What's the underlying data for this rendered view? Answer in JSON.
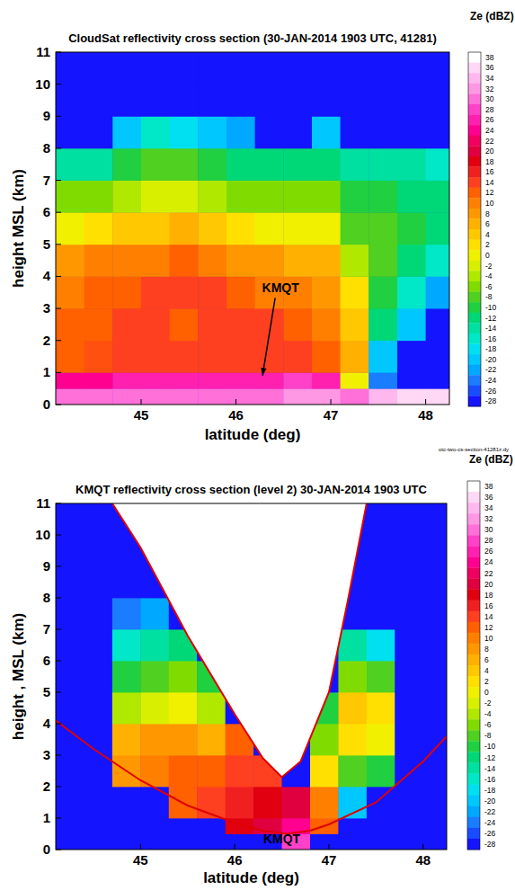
{
  "chart_data": [
    {
      "type": "heatmap",
      "title": "CloudSat reflectivity cross section (30-JAN-2014 1903 UTC, 41281)",
      "x_label": "latitude (deg)",
      "y_label": "height MSL (km)",
      "xlim": [
        44.1,
        48.25
      ],
      "ylim": [
        0,
        11
      ],
      "xticks": [
        45,
        46,
        47,
        48
      ],
      "yticks": [
        0,
        1,
        2,
        3,
        4,
        5,
        6,
        7,
        8,
        9,
        10,
        11
      ],
      "x_edges": [
        44.1,
        44.4,
        44.7,
        45.0,
        45.3,
        45.6,
        45.9,
        46.2,
        46.5,
        46.8,
        47.1,
        47.4,
        47.7,
        48.0,
        48.25
      ],
      "y_edges": [
        0,
        0.5,
        1,
        2,
        3,
        4,
        5,
        6,
        7,
        8,
        9,
        10,
        11
      ],
      "cells": [
        [
          30,
          24,
          12,
          12,
          10,
          8,
          0,
          -6,
          -14,
          -28,
          -28,
          -28
        ],
        [
          30,
          24,
          13,
          12,
          12,
          10,
          2,
          -6,
          -14,
          -28,
          -28,
          -28
        ],
        [
          30,
          26,
          14,
          14,
          12,
          10,
          4,
          -4,
          -10,
          -20,
          -28,
          -28
        ],
        [
          30,
          26,
          14,
          14,
          14,
          10,
          4,
          -2,
          -8,
          -16,
          -28,
          -28
        ],
        [
          30,
          26,
          14,
          12,
          14,
          12,
          6,
          -2,
          -8,
          -18,
          -28,
          -28
        ],
        [
          30,
          26,
          14,
          14,
          14,
          10,
          4,
          -4,
          -10,
          -20,
          -28,
          -28
        ],
        [
          30,
          26,
          14,
          14,
          12,
          8,
          2,
          -6,
          -12,
          -22,
          -28,
          -28
        ],
        [
          30,
          26,
          14,
          14,
          10,
          8,
          0,
          -6,
          -12,
          -28,
          -28,
          -28
        ],
        [
          32,
          28,
          14,
          12,
          10,
          6,
          0,
          -6,
          -12,
          -28,
          -28,
          -28
        ],
        [
          32,
          26,
          12,
          10,
          8,
          6,
          0,
          -6,
          -12,
          -20,
          -28,
          -28
        ],
        [
          30,
          0,
          6,
          4,
          2,
          -4,
          -8,
          -10,
          -14,
          -28,
          -28,
          -28
        ],
        [
          34,
          -24,
          -20,
          -12,
          -10,
          -8,
          -8,
          -10,
          -14,
          -28,
          -28,
          -28
        ],
        [
          36,
          -28,
          -28,
          -20,
          -16,
          -12,
          -10,
          -12,
          -14,
          -28,
          -28,
          -28
        ],
        [
          36,
          -28,
          -28,
          -28,
          -22,
          -16,
          -12,
          -12,
          -16,
          -28,
          -28,
          -28
        ]
      ],
      "colorbar": {
        "label": "Ze (dBZ)",
        "range": [
          -29,
          39
        ],
        "ticks": [
          38,
          36,
          34,
          32,
          30,
          28,
          26,
          24,
          22,
          20,
          18,
          16,
          14,
          12,
          10,
          8,
          6,
          4,
          2,
          0,
          -2,
          -4,
          -6,
          -8,
          -10,
          -12,
          -14,
          -16,
          -18,
          -20,
          -22,
          -24,
          -26,
          -28
        ]
      },
      "annotations": [
        {
          "text": "KMQT",
          "x": 46.28,
          "y": 0.9,
          "label_x": 46.47,
          "label_y": 3.5
        }
      ],
      "footnote": "otc-two-cs-section-41281z.dy"
    },
    {
      "type": "heatmap",
      "title": "KMQT reflectivity cross section (level 2) 30-JAN-2014 1903 UTC",
      "x_label": "latitude (deg)",
      "y_label": "height , MSL (km)",
      "xlim": [
        44.1,
        48.25
      ],
      "ylim": [
        0,
        11
      ],
      "xticks": [
        45,
        46,
        47,
        48
      ],
      "yticks": [
        0,
        1,
        2,
        3,
        4,
        5,
        6,
        7,
        8,
        9,
        10,
        11
      ],
      "x_edges": [
        44.1,
        44.4,
        44.7,
        45.0,
        45.3,
        45.6,
        45.9,
        46.2,
        46.5,
        46.8,
        47.1,
        47.4,
        47.7,
        48.0,
        48.25
      ],
      "y_edges": [
        0,
        0.5,
        1,
        2,
        3,
        4,
        5,
        6,
        7,
        8,
        9,
        10,
        11
      ],
      "cells": [
        [
          -28,
          -28,
          -28,
          -28,
          -28,
          -28,
          -28,
          -28,
          -28,
          -28,
          -28,
          -28
        ],
        [
          -28,
          -28,
          -28,
          -28,
          -28,
          -28,
          -28,
          -28,
          -28,
          -28,
          -28,
          -28
        ],
        [
          -28,
          -28,
          -28,
          8,
          6,
          -4,
          -10,
          -16,
          -24,
          -28,
          -28,
          -28
        ],
        [
          -28,
          -28,
          -28,
          10,
          8,
          -2,
          -8,
          -14,
          -22,
          -28,
          -28,
          -28
        ],
        [
          -28,
          -28,
          12,
          12,
          8,
          0,
          -6,
          -12,
          -28,
          -28,
          -28,
          -28
        ],
        [
          -28,
          -28,
          14,
          12,
          6,
          -4,
          -10,
          -28,
          -28,
          -28,
          -28,
          -28
        ],
        [
          -28,
          18,
          16,
          14,
          12,
          -28,
          -28,
          -28,
          -28,
          -28,
          -28,
          -28
        ],
        [
          -28,
          20,
          18,
          14,
          -28,
          -28,
          -28,
          -28,
          -28,
          -28,
          -28,
          -28
        ],
        [
          28,
          24,
          20,
          -28,
          -28,
          -28,
          -28,
          -28,
          -28,
          -28,
          -28,
          -28
        ],
        [
          -28,
          12,
          10,
          2,
          -6,
          -10,
          -28,
          -28,
          -28,
          -28,
          -28,
          -28
        ],
        [
          -28,
          -28,
          -20,
          -8,
          2,
          4,
          -6,
          -14,
          -28,
          -28,
          -28,
          -28
        ],
        [
          -28,
          -28,
          -28,
          -10,
          0,
          2,
          -8,
          -18,
          -28,
          -28,
          -28,
          -28
        ],
        [
          -28,
          -28,
          -28,
          -28,
          -28,
          -28,
          -28,
          -28,
          -28,
          -28,
          -28,
          -28
        ],
        [
          -28,
          -28,
          -28,
          -28,
          -28,
          -28,
          -28,
          -28,
          -28,
          -28,
          -28,
          -28
        ]
      ],
      "colorbar": {
        "label": "Ze (dBZ)",
        "range": [
          -29,
          39
        ],
        "ticks": [
          38,
          36,
          34,
          32,
          30,
          28,
          26,
          24,
          22,
          20,
          18,
          16,
          14,
          12,
          10,
          8,
          6,
          4,
          2,
          0,
          -2,
          -4,
          -6,
          -8,
          -10,
          -12,
          -14,
          -16,
          -18,
          -20,
          -22,
          -24,
          -26,
          -28
        ]
      },
      "coverage": {
        "lowest": {
          "x": [
            44.1,
            44.5,
            45.0,
            45.5,
            46.0,
            46.3,
            46.55,
            46.8,
            47.0,
            47.5,
            48.0,
            48.25
          ],
          "y": [
            4.1,
            3.2,
            2.2,
            1.4,
            0.85,
            0.6,
            0.5,
            0.6,
            0.8,
            1.5,
            2.8,
            3.6
          ]
        },
        "highest": {
          "x": [
            44.6,
            44.7,
            45.0,
            45.5,
            46.0,
            46.3,
            46.5,
            46.7,
            47.0,
            47.2,
            47.4,
            47.5
          ],
          "y": [
            11.8,
            11,
            9.6,
            6.8,
            4.3,
            2.9,
            2.3,
            2.8,
            5.0,
            7.9,
            11,
            12.4
          ]
        }
      },
      "annotations": [
        {
          "text": "KMQT",
          "x": 46.5,
          "y": 0.2
        }
      ]
    }
  ]
}
